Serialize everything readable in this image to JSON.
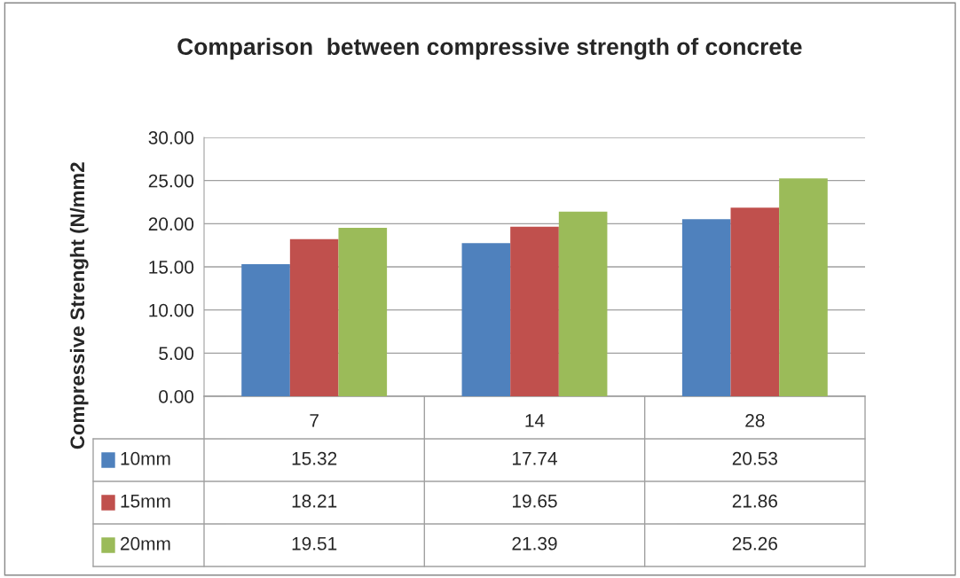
{
  "chart_data": {
    "type": "bar",
    "title": "Comparison  between compressive strength of concrete",
    "ylabel": "Compressive Strenght (N/mm2",
    "categories": [
      "7",
      "14",
      "28"
    ],
    "series": [
      {
        "name": "10mm",
        "color": "#4f81bd",
        "values": [
          15.32,
          17.74,
          20.53
        ]
      },
      {
        "name": "15mm",
        "color": "#c0504d",
        "values": [
          18.21,
          19.65,
          21.86
        ]
      },
      {
        "name": "20mm",
        "color": "#9bbb59",
        "values": [
          19.51,
          21.39,
          25.26
        ]
      }
    ],
    "ylim": [
      0,
      30
    ],
    "yticks": [
      {
        "value": 0,
        "label": "0.00"
      },
      {
        "value": 5,
        "label": "5.00"
      },
      {
        "value": 10,
        "label": "10.00"
      },
      {
        "value": 15,
        "label": "15.00"
      },
      {
        "value": 20,
        "label": "20.00"
      },
      {
        "value": 25,
        "label": "25.00"
      },
      {
        "value": 30,
        "label": "30.00"
      }
    ],
    "grid": "y",
    "legend": "bottom",
    "data_labels": true
  }
}
